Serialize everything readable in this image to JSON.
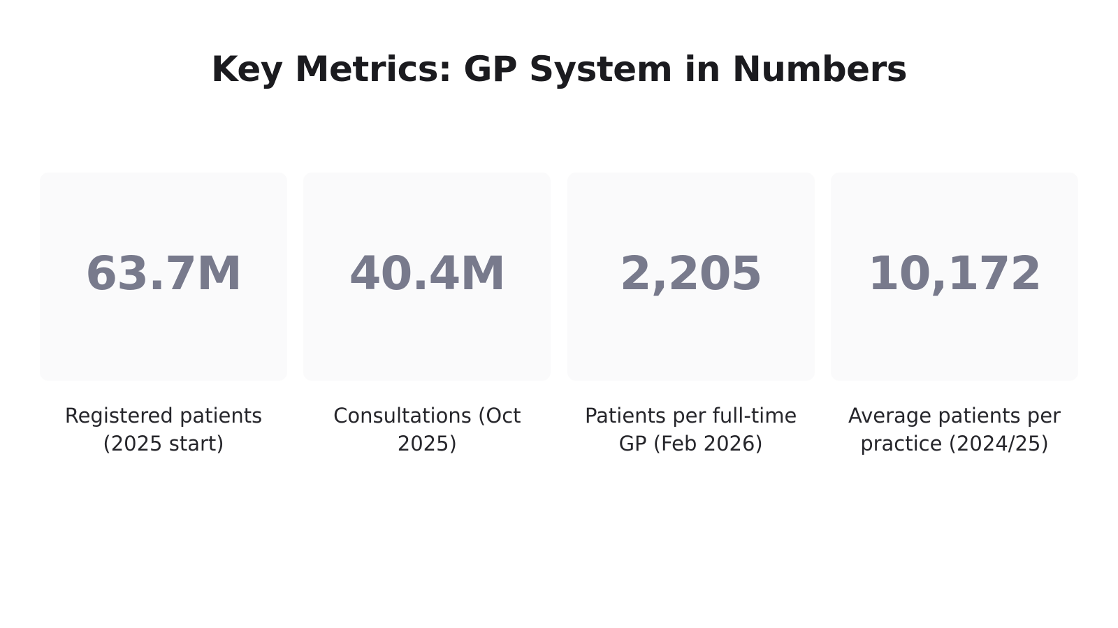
{
  "title": "Key Metrics: GP System in Numbers",
  "metrics": [
    {
      "value": "63.7M",
      "label": "Registered patients (2025 start)"
    },
    {
      "value": "40.4M",
      "label": "Consultations (Oct 2025)"
    },
    {
      "value": "2,205",
      "label": "Patients per full-time GP (Feb 2026)"
    },
    {
      "value": "10,172",
      "label": "Average patients per practice (2024/25)"
    }
  ],
  "colors": {
    "title": "#1b1b1f",
    "value": "#787a8c",
    "card_background": "#fafafb",
    "label": "#26262b"
  }
}
